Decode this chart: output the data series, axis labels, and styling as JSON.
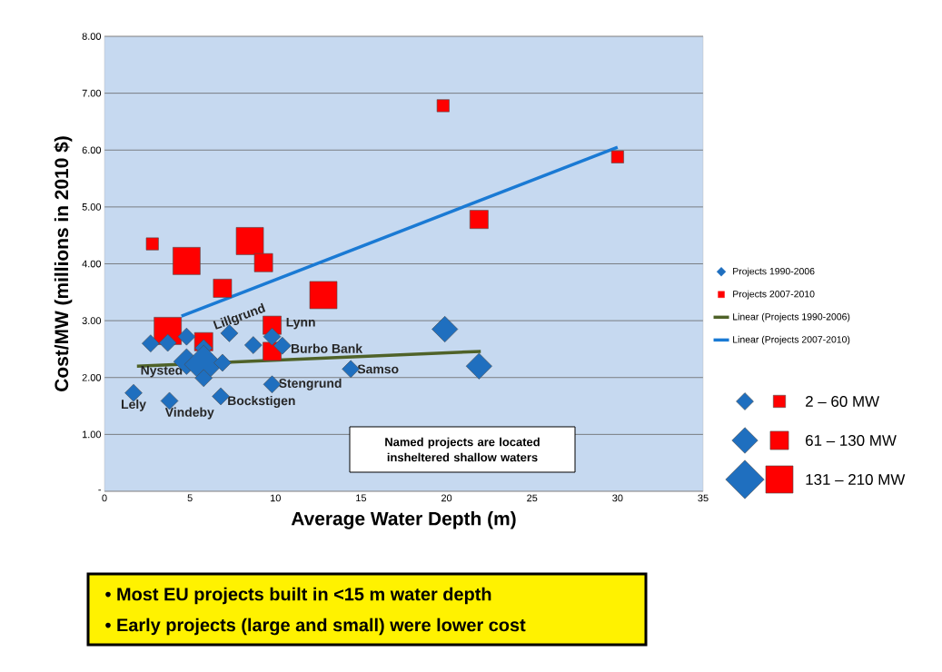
{
  "chart_data": {
    "type": "bubble",
    "xlabel": "Average Water Depth (m)",
    "ylabel": "Cost/MW (millions in 2010 $)",
    "xlim": [
      0,
      35
    ],
    "ylim": [
      0,
      8
    ],
    "xticks": [
      0,
      5,
      10,
      15,
      20,
      25,
      30,
      35
    ],
    "yticks": [
      {
        "value": 0,
        "label": "-"
      },
      {
        "value": 1,
        "label": "1.00"
      },
      {
        "value": 2,
        "label": "2.00"
      },
      {
        "value": 3,
        "label": "3.00"
      },
      {
        "value": 4,
        "label": "4.00"
      },
      {
        "value": 5,
        "label": "5.00"
      },
      {
        "value": 6,
        "label": "6.00"
      },
      {
        "value": 7,
        "label": "7.00"
      },
      {
        "value": 8,
        "label": "8.00"
      }
    ],
    "grid": "y",
    "legend": "right",
    "size_legend": [
      {
        "value": 0.2,
        "label": "2 – 60 MW"
      },
      {
        "value": 0.45,
        "label": "61 – 130 MW"
      },
      {
        "value": 1,
        "label": "131 – 210 MW"
      }
    ],
    "series": [
      {
        "name": "Projects 1990-2006",
        "marker": "diamond",
        "color": "#1f6fbf",
        "x": [
          2.7,
          3.7,
          4.8,
          7.3,
          5.8,
          8.7,
          9.8,
          10.4,
          4.8,
          5.8,
          6.9,
          5.8,
          1.7,
          3.8,
          6.8,
          9.8,
          14.4,
          19.9,
          21.9
        ],
        "values": [
          2.6,
          2.61,
          2.72,
          2.78,
          2.52,
          2.57,
          2.72,
          2.56,
          2.28,
          2.23,
          2.26,
          1.99,
          1.73,
          1.59,
          1.67,
          1.88,
          2.15,
          2.85,
          2.2
        ],
        "sizes": [
          0.2,
          0.2,
          0.2,
          0.2,
          0.2,
          0.2,
          0.2,
          0.2,
          0.45,
          1,
          0.2,
          0.2,
          0.2,
          0.2,
          0.2,
          0.2,
          0.2,
          0.45,
          0.45
        ]
      },
      {
        "name": "Projects 2007-2010",
        "marker": "square",
        "color": "#ff0000",
        "x": [
          2.8,
          4.8,
          8.5,
          9.3,
          6.9,
          12.8,
          3.7,
          5.8,
          9.8,
          9.8,
          19.8,
          21.9,
          30
        ],
        "values": [
          4.35,
          4.05,
          4.4,
          4.02,
          3.57,
          3.45,
          2.82,
          2.63,
          2.92,
          2.46,
          6.78,
          4.78,
          5.88
        ],
        "sizes": [
          0.2,
          1,
          1,
          0.45,
          0.45,
          1,
          1,
          0.45,
          0.45,
          0.45,
          0.2,
          0.45,
          0.2
        ]
      },
      {
        "name": "Linear (Projects 1990-2006)",
        "type": "line",
        "marker": "none",
        "color": "#4f6228",
        "x": [
          1.9,
          22
        ],
        "values": [
          2.2,
          2.46
        ]
      },
      {
        "name": "Linear (Projects 2007-2010)",
        "type": "line",
        "marker": "none",
        "color": "#1a7ad4",
        "x": [
          4.5,
          30
        ],
        "values": [
          3.08,
          6.05
        ]
      }
    ],
    "annotations": [
      {
        "text": "Nysted",
        "x": 4.8,
        "y": 2.28
      },
      {
        "text": "Lely",
        "x": 1.7,
        "y": 1.73
      },
      {
        "text": "Vindeby",
        "x": 3.8,
        "y": 1.59
      },
      {
        "text": "Bockstigen",
        "x": 6.8,
        "y": 1.67
      },
      {
        "text": "Stengrund",
        "x": 9.8,
        "y": 1.88
      },
      {
        "text": "Samso",
        "x": 14.4,
        "y": 2.15
      },
      {
        "text": "Burbo Bank",
        "x": 10.4,
        "y": 2.56
      },
      {
        "text": "Lynn",
        "x": 9.8,
        "y": 2.92
      },
      {
        "text": "Lillgrund",
        "x": 7.3,
        "y": 2.78
      },
      "Named projects are located insheltered shallow waters",
      "• Most EU projects built in <15 m water depth",
      "• Early projects (large and small) were lower cost"
    ]
  }
}
